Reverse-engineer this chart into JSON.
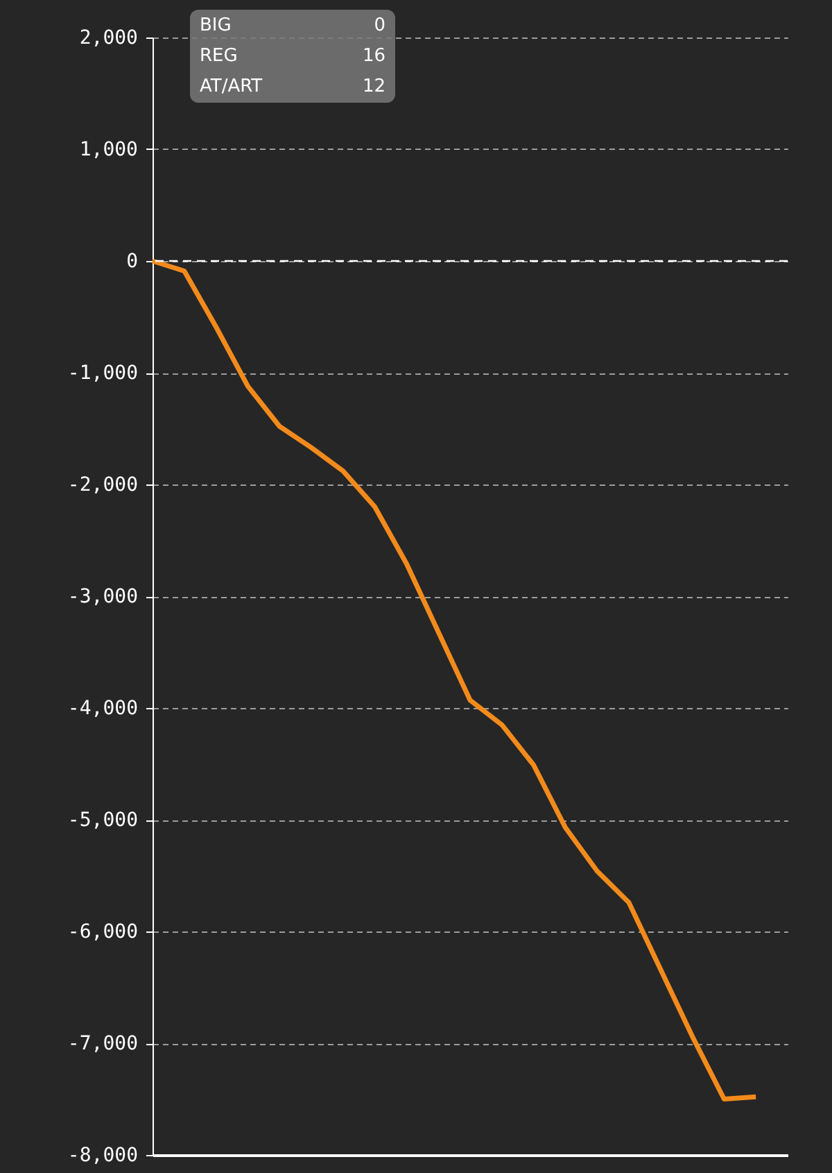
{
  "chart_data": {
    "type": "line",
    "categories": [
      null,
      null,
      null,
      null,
      null,
      null,
      null,
      null,
      null,
      null,
      null,
      null,
      null,
      null,
      null,
      null,
      null,
      null,
      null,
      null,
      null
    ],
    "series": [
      {
        "color": "#f28a1c",
        "values": [
          0,
          -90,
          -590,
          -1120,
          -1480,
          -1670,
          -1880,
          -2200,
          -2710,
          -3320,
          -3930,
          -4150,
          -4510,
          -5070,
          -5460,
          -5740,
          -6340,
          -6940,
          -7500,
          -7480,
          null
        ]
      }
    ],
    "ylim": [
      -8000,
      2000
    ],
    "yticks": [
      {
        "value": -8000,
        "label": "-8,000"
      },
      {
        "value": -7000,
        "label": "-7,000"
      },
      {
        "value": -6000,
        "label": "-6,000"
      },
      {
        "value": -5000,
        "label": "-5,000"
      },
      {
        "value": -4000,
        "label": "-4,000"
      },
      {
        "value": -3000,
        "label": "-3,000"
      },
      {
        "value": -2000,
        "label": "-2,000"
      },
      {
        "value": -1000,
        "label": "-1,000"
      },
      0,
      {
        "value": 1000,
        "label": "1,000"
      },
      {
        "value": 2000,
        "label": "2,000"
      }
    ],
    "grid": "y",
    "ref_lines": [
      {
        "axis": "y",
        "value": 0,
        "color": "#ffffff",
        "line_style": "dashed"
      }
    ],
    "annotations": [
      "BIG",
      "0",
      "REG",
      "16",
      "AT/ART",
      "12"
    ],
    "legend": false,
    "line_style": "solid",
    "marker": "none"
  }
}
